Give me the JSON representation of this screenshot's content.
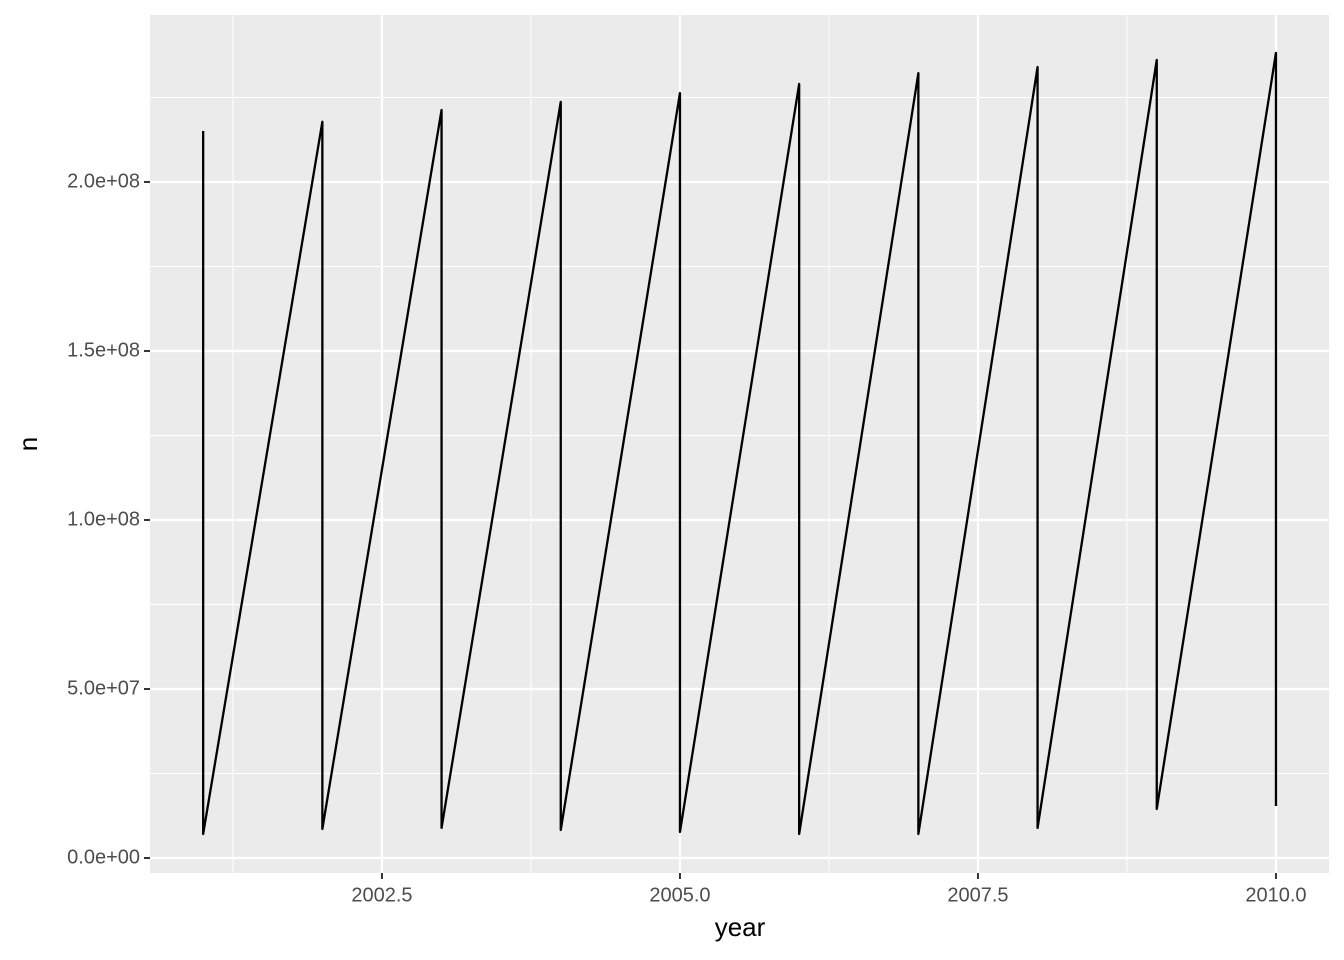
{
  "chart_data": {
    "type": "line",
    "x_label": "year",
    "y_label": "n",
    "x": [
      2001,
      2001,
      2002,
      2002,
      2003,
      2003,
      2004,
      2004,
      2005,
      2005,
      2006,
      2006,
      2007,
      2007,
      2008,
      2008,
      2009,
      2009,
      2010,
      2010
    ],
    "values": [
      215100000,
      7100000,
      217800000,
      8600000,
      221300000,
      8900000,
      223700000,
      8300000,
      226300000,
      7700000,
      229000000,
      7100000,
      232200000,
      7100000,
      234000000,
      8900000,
      236100000,
      14500000,
      238200000,
      15400000
    ],
    "color": "#000000",
    "xlim": [
      2000.554,
      2010.445
    ],
    "ylim": [
      -4440000,
      249400000
    ],
    "xticks": [
      {
        "value": 2002.5,
        "label": "2002.5"
      },
      {
        "value": 2005,
        "label": "2005.0"
      },
      {
        "value": 2007.5,
        "label": "2007.5"
      },
      {
        "value": 2010,
        "label": "2010.0"
      }
    ],
    "yticks": [
      {
        "value": 0,
        "label": "0.0e+00"
      },
      {
        "value": 50000000,
        "label": "5.0e+07"
      },
      {
        "value": 100000000,
        "label": "1.0e+08"
      },
      {
        "value": 150000000,
        "label": "1.5e+08"
      },
      {
        "value": 200000000,
        "label": "2.0e+08"
      }
    ],
    "x_minor_ticks": [
      2001.25,
      2003.75,
      2006.25,
      2008.75
    ],
    "y_minor_ticks": [
      25000000,
      75000000,
      125000000,
      175000000,
      225000000
    ],
    "grid": true
  }
}
